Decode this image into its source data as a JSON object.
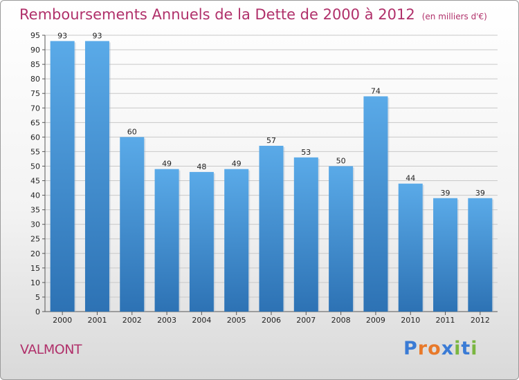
{
  "title": "Remboursements Annuels de la Dette de 2000 à 2012",
  "unit": "(en milliers d'€)",
  "commune": "VALMONT",
  "brand": {
    "text": "Proxiti",
    "letters": [
      {
        "char": "P",
        "color": "#3a7bd5"
      },
      {
        "char": "r",
        "color": "#e8792a"
      },
      {
        "char": "o",
        "color": "#e8792a"
      },
      {
        "char": "x",
        "color": "#3a7bd5"
      },
      {
        "char": "i",
        "color": "#7ab640"
      },
      {
        "char": "t",
        "color": "#3a7bd5"
      },
      {
        "char": "i",
        "color": "#7ab640"
      }
    ]
  },
  "colors": {
    "title": "#b0306a",
    "bar_top": "#5aaae8",
    "bar_bottom": "#2d72b4",
    "grid": "#c8c8c8"
  },
  "chart_data": {
    "type": "bar",
    "title": "Remboursements Annuels de la Dette de 2000 à 2012",
    "ylabel": "",
    "xlabel": "",
    "categories": [
      "2000",
      "2001",
      "2002",
      "2003",
      "2004",
      "2005",
      "2006",
      "2007",
      "2008",
      "2009",
      "2010",
      "2011",
      "2012"
    ],
    "values": [
      93,
      93,
      60,
      49,
      48,
      49,
      57,
      53,
      50,
      74,
      44,
      39,
      39
    ],
    "ylim": [
      0,
      95
    ],
    "ytick_step": 5,
    "grid": true
  }
}
